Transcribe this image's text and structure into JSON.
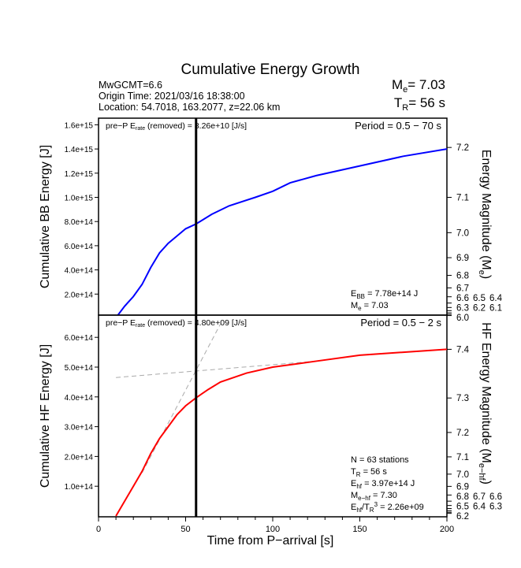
{
  "chart_data": [
    {
      "type": "line",
      "title": "Cumulative Energy Growth",
      "header": {
        "mw": "MwGCMT=6.6",
        "origin": "Origin Time: 2021/03/16 18:38:00",
        "location": "Location: 54.7018, 163.2077, z=22.06 km",
        "me_label": "M",
        "me_sub": "e",
        "me_value": "= 7.03",
        "tr_label": "T",
        "tr_sub": "R",
        "tr_value": "= 56 s"
      },
      "ylabel": "Cumulative BB Energy [J]",
      "y2label": "Energy Magnitude (M",
      "y2sub": "e",
      "y2end": ")",
      "ylim": [
        0,
        1650000000000000.0
      ],
      "yticks": [
        200000000000000.0,
        400000000000000.0,
        600000000000000.0,
        800000000000000.0,
        1000000000000000.0,
        1200000000000000.0,
        1400000000000000.0,
        1600000000000000.0
      ],
      "ytick_labels": [
        "2.0e+14",
        "4.0e+14",
        "6.0e+14",
        "8.0e+14",
        "1.0e+15",
        "1.2e+15",
        "1.4e+15",
        "1.6e+15"
      ],
      "y2ticks": [
        7.2,
        7.1,
        7.0,
        6.9,
        6.8,
        6.7,
        6.6,
        6.5,
        6.4,
        6.3,
        6.2,
        6.1,
        6.0
      ],
      "y2tick_labels": [
        "7.2",
        "7.1",
        "7.0",
        "6.9",
        "6.8",
        "6.7",
        "6.6",
        "6.5",
        "6.4",
        "6.3",
        "6.2",
        "6.1",
        "6.0"
      ],
      "mag_offset": 2.9,
      "prep": {
        "a": "pre−P E",
        "sub": "rate",
        "b": " (removed) = 8.26e+10 [J/s]"
      },
      "period": "Period = 0.5 − 70 s",
      "annot": [
        {
          "t": "E",
          "s": "BB",
          "r": " = 7.78e+14 J"
        },
        {
          "t": "M",
          "s": "e",
          "r": " = 7.03"
        }
      ],
      "color": "#0000ff",
      "series": [
        {
          "name": "BB energy",
          "x": [
            9,
            10,
            15,
            20,
            25,
            30,
            35,
            40,
            45,
            50,
            56,
            65,
            75,
            90,
            100,
            110,
            125,
            150,
            175,
            200
          ],
          "y": [
            0,
            5000000000000.0,
            100000000000000.0,
            180000000000000.0,
            280000000000000.0,
            420000000000000.0,
            540000000000000.0,
            620000000000000.0,
            680000000000000.0,
            740000000000000.0,
            780000000000000.0,
            860000000000000.0,
            930000000000000.0,
            1000000000000000.0,
            1050000000000000.0,
            1120000000000000.0,
            1180000000000000.0,
            1260000000000000.0,
            1340000000000000.0,
            1400000000000000.0
          ]
        }
      ]
    },
    {
      "type": "line",
      "ylabel": "Cumulative HF Energy [J]",
      "y2label": "HF Energy Magnitude (M",
      "y2sub": "e−hf",
      "y2end": ")",
      "ylim": [
        0,
        650000000000000.0
      ],
      "yticks": [
        100000000000000.0,
        200000000000000.0,
        300000000000000.0,
        400000000000000.0,
        500000000000000.0,
        600000000000000.0
      ],
      "ytick_labels": [
        "1.0e+14",
        "2.0e+14",
        "3.0e+14",
        "4.0e+14",
        "5.0e+14",
        "6.0e+14"
      ],
      "y2ticks": [
        7.4,
        7.3,
        7.2,
        7.1,
        7.0,
        6.9,
        6.8,
        6.7,
        6.6,
        6.5,
        6.4,
        6.3,
        6.2
      ],
      "y2tick_labels": [
        "7.4",
        "7.3",
        "7.2",
        "7.1",
        "7.0",
        "6.9",
        "6.8",
        "6.7",
        "6.6",
        "6.5",
        "6.4",
        "6.3",
        "6.2"
      ],
      "mag_offset": 2.432,
      "prep": {
        "a": "pre−P E",
        "sub": "rate",
        "b": " (removed) = 4.80e+09 [J/s]"
      },
      "period": "Period = 0.5 − 2 s",
      "annot": [
        {
          "t": "N = 63 stations",
          "s": "",
          "r": ""
        },
        {
          "t": "T",
          "s": "R",
          "r": " = 56  s"
        },
        {
          "t": "E",
          "s": "hf",
          "r": " = 3.97e+14 J"
        },
        {
          "t": "M",
          "s": "e−hf",
          "r": " = 7.30"
        },
        {
          "t": "E",
          "s": "hf",
          "r": "/T",
          "s2": "R",
          "sup": "3",
          "r2": " =  2.26e+09"
        }
      ],
      "color": "#ff0000",
      "series": [
        {
          "name": "HF energy",
          "x": [
            10,
            15,
            20,
            25,
            30,
            35,
            40,
            45,
            50,
            56,
            63,
            70,
            85,
            100,
            125,
            150,
            175,
            200
          ],
          "y": [
            0,
            50000000000000.0,
            100000000000000.0,
            150000000000000.0,
            210000000000000.0,
            260000000000000.0,
            300000000000000.0,
            340000000000000.0,
            370000000000000.0,
            397000000000000.0,
            425000000000000.0,
            450000000000000.0,
            480000000000000.0,
            500000000000000.0,
            520000000000000.0,
            540000000000000.0,
            550000000000000.0,
            560000000000000.0
          ]
        }
      ],
      "fits": [
        {
          "x": [
            10,
            125
          ],
          "y": [
            465000000000000.0,
            520000000000000.0
          ]
        },
        {
          "x": [
            25,
            70
          ],
          "y": [
            145000000000000.0,
            645000000000000.0
          ]
        }
      ]
    }
  ],
  "xaxis": {
    "label": "Time from P−arrival [s]",
    "xlim": [
      0,
      200
    ],
    "ticks": [
      0,
      50,
      100,
      150,
      200
    ],
    "tick_labels": [
      "0",
      "50",
      "100",
      "150",
      "200"
    ]
  },
  "tr_line": 56
}
